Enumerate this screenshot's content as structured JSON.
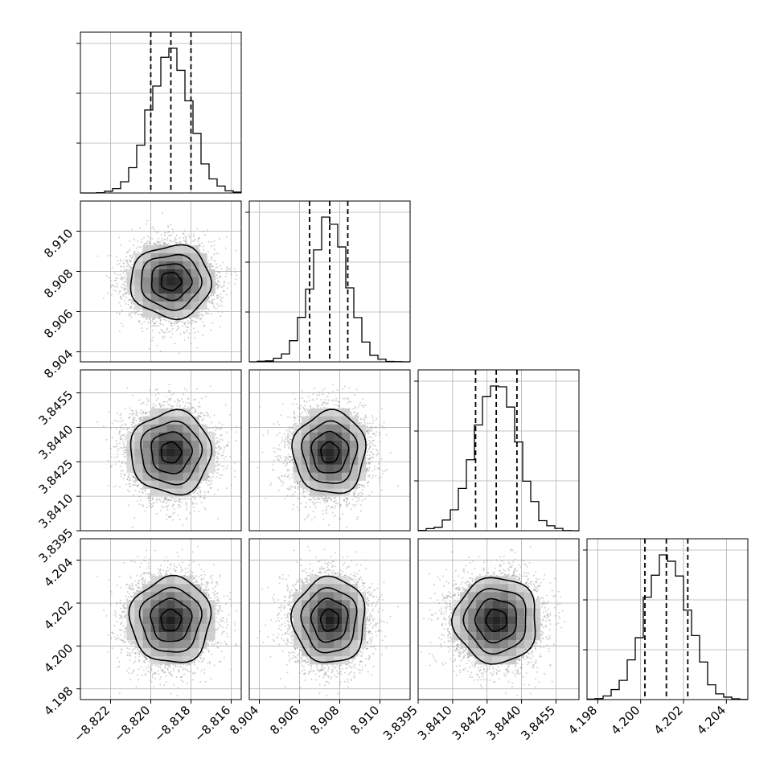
{
  "chart_data": {
    "type": "corner",
    "parameters": [
      {
        "lim": [
          -8.8235,
          -8.8155
        ],
        "ticks": [
          "−8.822",
          "−8.820",
          "−8.818",
          "−8.816"
        ],
        "tick_values": [
          -8.822,
          -8.82,
          -8.818,
          -8.816
        ],
        "quantiles": [
          -8.82,
          -8.819,
          -8.818
        ],
        "median": -8.819,
        "sigma": 0.001
      },
      {
        "lim": [
          8.9035,
          8.9115
        ],
        "ticks": [
          "8.904",
          "8.906",
          "8.908",
          "8.910"
        ],
        "tick_values": [
          8.904,
          8.906,
          8.908,
          8.91
        ],
        "quantiles": [
          8.9065,
          8.9075,
          8.9084
        ],
        "median": 8.9075,
        "sigma": 0.0009
      },
      {
        "lim": [
          3.8395,
          3.8465
        ],
        "ticks": [
          "3.8395",
          "3.8410",
          "3.8425",
          "3.8440",
          "3.8455"
        ],
        "tick_values": [
          3.8395,
          3.841,
          3.8425,
          3.844,
          3.8455
        ],
        "quantiles": [
          3.842,
          3.8429,
          3.8438
        ],
        "median": 3.8429,
        "sigma": 0.0009
      },
      {
        "lim": [
          4.1975,
          4.205
        ],
        "ticks": [
          "4.198",
          "4.200",
          "4.202",
          "4.204"
        ],
        "tick_values": [
          4.198,
          4.2,
          4.202,
          4.204
        ],
        "quantiles": [
          4.2002,
          4.2012,
          4.2022
        ],
        "median": 4.2012,
        "sigma": 0.001
      }
    ],
    "contour_levels_sigma": [
      0.5,
      1.0,
      1.5,
      2.0
    ],
    "histogram_bins": 20,
    "grid": true,
    "colors": {
      "line": "#000000",
      "scatter": "#9a9a9a",
      "grid": "#b0b0b0"
    }
  }
}
